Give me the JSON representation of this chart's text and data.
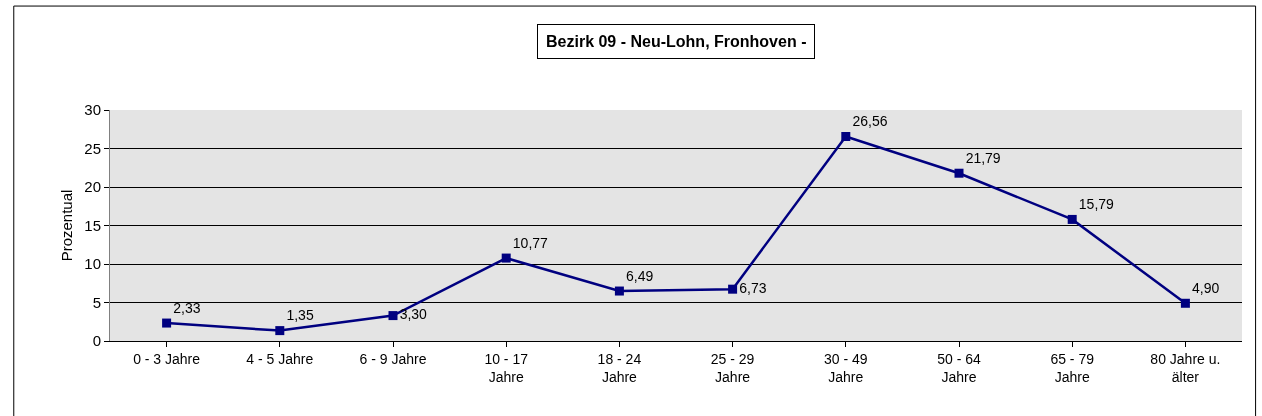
{
  "chart_data": {
    "type": "line",
    "title": "Bezirk 09 - Neu-Lohn, Fronhoven -",
    "ylabel": "Prozentual",
    "categories": [
      "0 - 3 Jahre",
      "4 - 5 Jahre",
      "6 - 9 Jahre",
      "10 - 17 Jahre",
      "18 - 24 Jahre",
      "25 - 29 Jahre",
      "30 - 49 Jahre",
      "50 - 64 Jahre",
      "65 - 79 Jahre",
      "80 Jahre u. älter"
    ],
    "series": [
      {
        "color": "#000080",
        "values": [
          2.33,
          1.35,
          3.3,
          10.77,
          6.49,
          6.73,
          26.56,
          21.79,
          15.79,
          4.9
        ],
        "value_labels": [
          "2,33",
          "1,35",
          "3,30",
          "10,77",
          "6,49",
          "6,73",
          "26,56",
          "21,79",
          "15,79",
          "4,90"
        ]
      }
    ],
    "ylim": [
      0,
      30
    ],
    "yticks": [
      0,
      5,
      10,
      15,
      20,
      25,
      30
    ],
    "grid": "y",
    "marker": "square",
    "line_style": "solid"
  }
}
